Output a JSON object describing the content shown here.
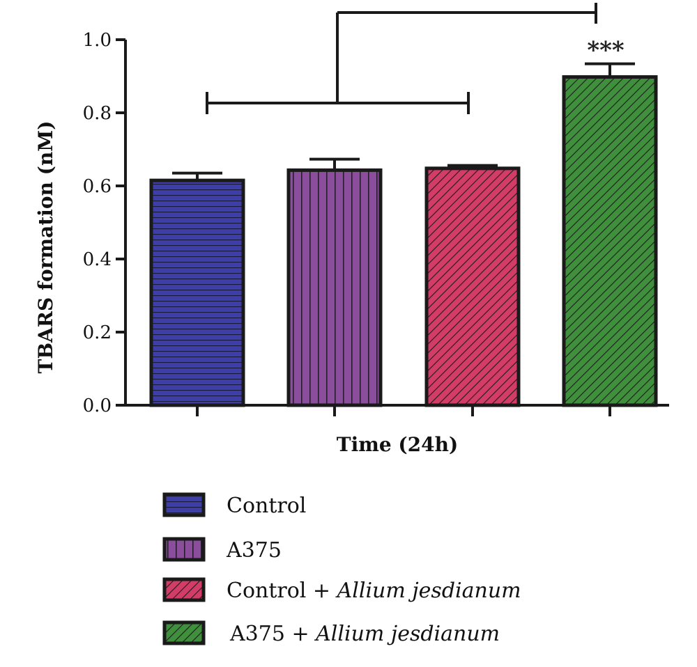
{
  "chart_data": {
    "type": "bar",
    "title": "",
    "xlabel": "Time (24h)",
    "ylabel": "TBARS formation (nM)",
    "ylim": [
      0,
      1.0
    ],
    "yticks": [
      "0.0",
      "0.2",
      "0.4",
      "0.6",
      "0.8",
      "1.0"
    ],
    "grid": false,
    "legend_placement": "bottom",
    "series": [
      {
        "name": "Control",
        "value": 0.615,
        "error": 0.02,
        "color": "#3e3ea8",
        "pattern": "horizontal"
      },
      {
        "name": "A375",
        "value": 0.643,
        "error": 0.03,
        "color": "#8a4e9c",
        "pattern": "vertical"
      },
      {
        "name": "Control + Allium jesdianum",
        "name_parts": [
          "Control + ",
          "Allium jesdianum"
        ],
        "value": 0.648,
        "error": 0.008,
        "color": "#d23c66",
        "pattern": "diagonal"
      },
      {
        "name": "A375 + Allium jesdianum",
        "name_parts": [
          "A375 + ",
          "Allium jesdianum"
        ],
        "value": 0.898,
        "error": 0.036,
        "color": "#3f8f3c",
        "pattern": "diagonal"
      }
    ],
    "annotations": [
      {
        "text": "***",
        "series_index": 3
      }
    ]
  }
}
